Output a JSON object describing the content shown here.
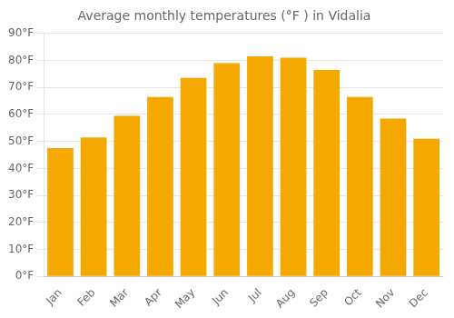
{
  "chart_data": {
    "type": "bar",
    "title": "Average monthly temperatures (°F ) in Vidalia",
    "categories": [
      "Jan",
      "Feb",
      "Mar",
      "Apr",
      "May",
      "Jun",
      "Jul",
      "Aug",
      "Sep",
      "Oct",
      "Nov",
      "Dec"
    ],
    "values": [
      47.5,
      51.5,
      59.5,
      66.5,
      73.5,
      79.0,
      81.5,
      81.0,
      76.5,
      66.5,
      58.5,
      51.0
    ],
    "color": "#F5A800",
    "ylim": [
      0,
      90
    ],
    "yticks": [
      {
        "value": 0,
        "label": "0°F"
      },
      {
        "value": 10,
        "label": "10°F"
      },
      {
        "value": 20,
        "label": "20°F"
      },
      {
        "value": 30,
        "label": "30°F"
      },
      {
        "value": 40,
        "label": "40°F"
      },
      {
        "value": 50,
        "label": "50°F"
      },
      {
        "value": 60,
        "label": "60°F"
      },
      {
        "value": 70,
        "label": "70°F"
      },
      {
        "value": 80,
        "label": "80°F"
      },
      {
        "value": 90,
        "label": "90°F"
      }
    ],
    "grid": true
  }
}
